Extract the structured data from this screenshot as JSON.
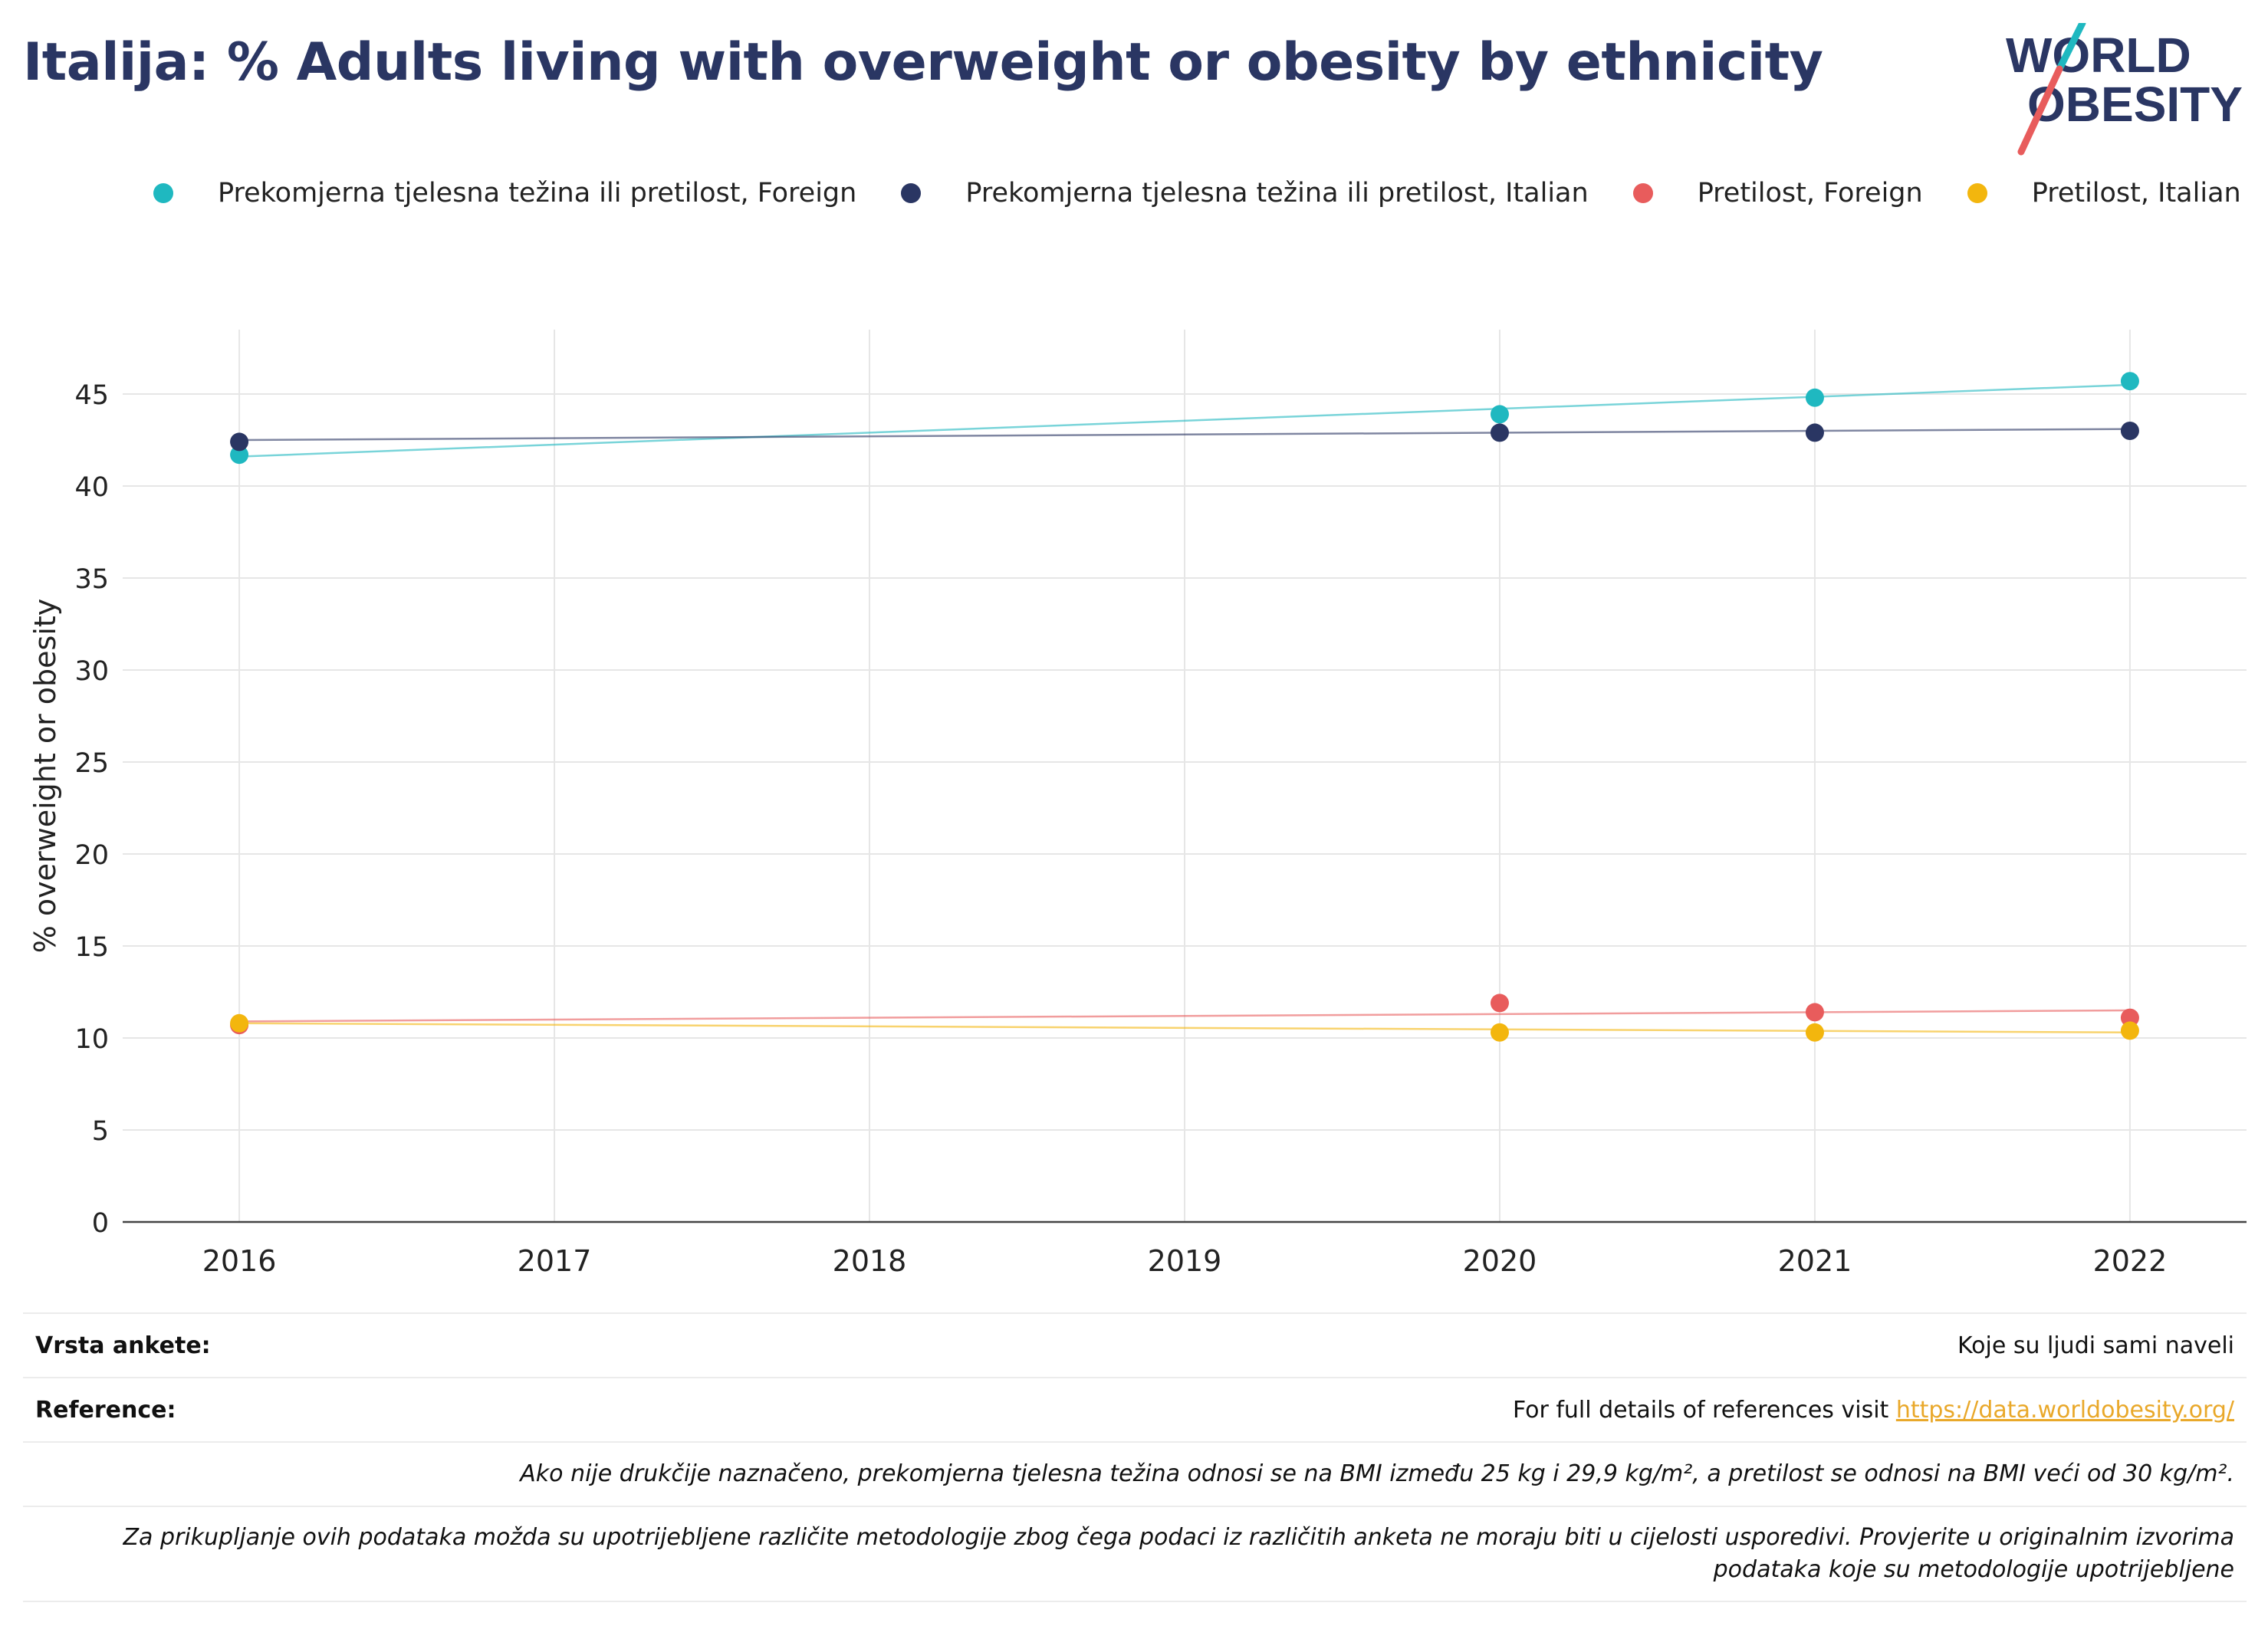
{
  "title": "Italija: % Adults living with overweight or obesity by ethnicity",
  "logo": {
    "line1": "WORLD",
    "line2": "OBESITY"
  },
  "colors": {
    "title": "#2a3663",
    "foreign_ow": "#1fb8c0",
    "italian_ow": "#2a3663",
    "foreign_ob": "#e85c5c",
    "italian_ob": "#f3b60e",
    "grid": "#e6e6e6",
    "link": "#e9a82a"
  },
  "legend": [
    {
      "label": "Prekomjerna tjelesna težina ili pretilost, Foreign",
      "color": "#1fb8c0"
    },
    {
      "label": "Prekomjerna tjelesna težina ili pretilost, Italian",
      "color": "#2a3663"
    },
    {
      "label": "Pretilost, Foreign",
      "color": "#e85c5c"
    },
    {
      "label": "Pretilost, Italian",
      "color": "#f3b60e"
    }
  ],
  "chart_data": {
    "type": "scatter",
    "ylabel": "% overweight or obesity",
    "xlabel": "",
    "x_ticks": [
      "2016",
      "2017",
      "2018",
      "2019",
      "2020",
      "2021",
      "2022"
    ],
    "y_ticks": [
      0,
      5,
      10,
      15,
      20,
      25,
      30,
      35,
      40,
      45
    ],
    "xlim": [
      2015.63,
      2022.37
    ],
    "ylim": [
      0,
      48.5
    ],
    "grid": true,
    "legend_position": "top",
    "series": [
      {
        "name": "Prekomjerna tjelesna težina ili pretilost, Foreign",
        "color": "#1fb8c0",
        "x": [
          2016,
          2020,
          2021,
          2022
        ],
        "y": [
          41.7,
          43.9,
          44.8,
          45.7
        ],
        "trend": [
          [
            2016,
            41.6
          ],
          [
            2022,
            45.5
          ]
        ]
      },
      {
        "name": "Prekomjerna tjelesna težina ili pretilost, Italian",
        "color": "#2a3663",
        "x": [
          2016,
          2020,
          2021,
          2022
        ],
        "y": [
          42.4,
          42.9,
          42.9,
          43.0
        ],
        "trend": [
          [
            2016,
            42.5
          ],
          [
            2022,
            43.1
          ]
        ]
      },
      {
        "name": "Pretilost, Foreign",
        "color": "#e85c5c",
        "x": [
          2016,
          2020,
          2021,
          2022
        ],
        "y": [
          10.7,
          11.9,
          11.4,
          11.1
        ],
        "trend": [
          [
            2016,
            10.9
          ],
          [
            2022,
            11.5
          ]
        ]
      },
      {
        "name": "Pretilost, Italian",
        "color": "#f3b60e",
        "x": [
          2016,
          2020,
          2021,
          2022
        ],
        "y": [
          10.8,
          10.3,
          10.3,
          10.4
        ],
        "trend": [
          [
            2016,
            10.8
          ],
          [
            2022,
            10.3
          ]
        ]
      }
    ]
  },
  "info": {
    "survey_label": "Vrsta ankete:",
    "survey_value": "Koje su ljudi sami naveli",
    "reference_label": "Reference:",
    "reference_text": "For full details of references visit",
    "reference_link": "https://data.worldobesity.org/",
    "note1": "Ako nije drukčije naznačeno, prekomjerna tjelesna težina odnosi se na BMI između 25 kg i 29,9 kg/m², a pretilost se odnosi na BMI veći od 30 kg/m².",
    "note2": "Za prikupljanje ovih podataka možda su upotrijebljene različite metodologije zbog čega podaci iz različitih anketa ne moraju biti u cijelosti usporedivi. Provjerite u originalnim izvorima podataka koje su metodologije upotrijebljene"
  }
}
